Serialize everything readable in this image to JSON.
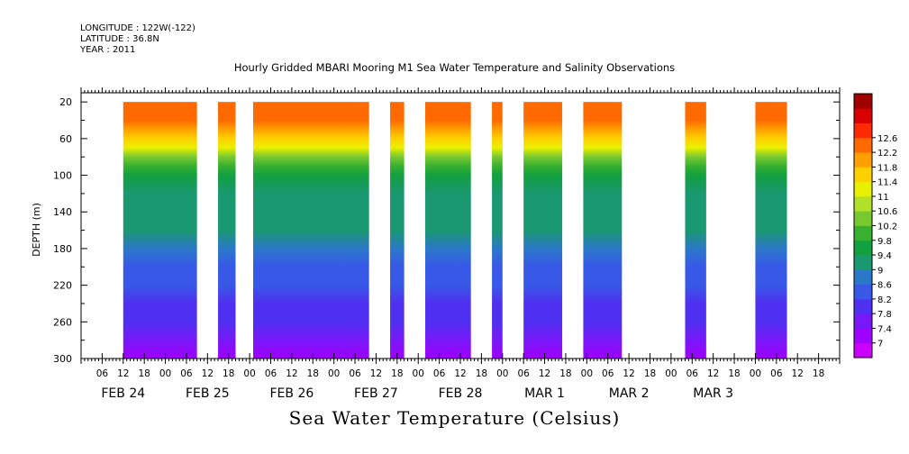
{
  "header": {
    "longitude": "LONGITUDE : 122W(-122)",
    "latitude": "LATITUDE : 36.8N",
    "year": "YEAR : 2011"
  },
  "chart_data": {
    "type": "heatmap",
    "title": "Hourly Gridded MBARI Mooring M1 Sea Water Temperature and Salinity Observations",
    "ylabel": "DEPTH (m)",
    "xlabel": "",
    "variable_label": "Sea Water Temperature (Celsius)",
    "ylim": [
      300,
      10
    ],
    "y_ticks": [
      20,
      60,
      100,
      140,
      180,
      220,
      260,
      300
    ],
    "x_range_hours": [
      0,
      216
    ],
    "x_hour_ticks": [
      "06",
      "12",
      "18",
      "00",
      "06",
      "12",
      "18",
      "00",
      "06",
      "12",
      "18",
      "00",
      "06",
      "12",
      "18",
      "00",
      "06",
      "12",
      "18",
      "00",
      "06",
      "12",
      "18",
      "00",
      "06",
      "12",
      "18",
      "00",
      "06",
      "12",
      "18",
      "00",
      "06",
      "12",
      "18"
    ],
    "x_date_labels": [
      "FEB 24",
      "FEB 25",
      "FEB 26",
      "FEB 27",
      "FEB 28",
      "MAR  1",
      "MAR  2",
      "MAR  3"
    ],
    "data_segments_hours": [
      [
        12,
        33
      ],
      [
        39,
        44
      ],
      [
        49,
        82
      ],
      [
        88,
        92
      ],
      [
        98,
        111
      ],
      [
        117,
        120
      ],
      [
        126,
        137
      ],
      [
        143,
        154
      ],
      [
        172,
        178
      ],
      [
        192,
        201
      ]
    ],
    "colorbar": {
      "levels": [
        7,
        7.4,
        7.8,
        8.2,
        8.6,
        9,
        9.4,
        9.8,
        10.2,
        10.6,
        11,
        11.4,
        11.8,
        12.2,
        12.6
      ],
      "colors": [
        "#cc00ff",
        "#a000ff",
        "#7818f8",
        "#5030f0",
        "#3858e8",
        "#2a78c8",
        "#1a9870",
        "#12a040",
        "#38b030",
        "#78c830",
        "#b0e028",
        "#e8f000",
        "#ffd000",
        "#ffa000",
        "#ff6a00",
        "#ff2a00",
        "#d80000",
        "#a00000"
      ]
    },
    "depth_profile": {
      "depth_m": [
        20,
        40,
        50,
        60,
        70,
        80,
        90,
        100,
        120,
        140,
        160,
        180,
        200,
        220,
        240,
        260,
        280,
        300
      ],
      "temperature_c": [
        12.5,
        12.3,
        12.1,
        11.7,
        11.0,
        10.3,
        9.9,
        9.6,
        9.35,
        9.15,
        9.0,
        8.8,
        8.55,
        8.3,
        8.05,
        7.8,
        7.5,
        7.25
      ]
    }
  }
}
